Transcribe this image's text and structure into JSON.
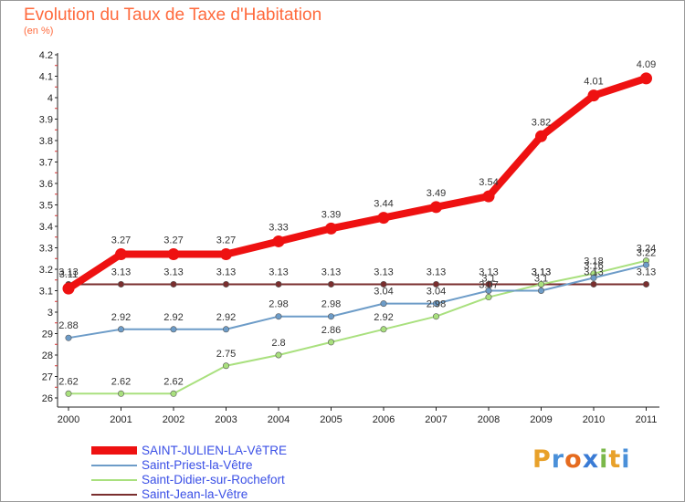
{
  "title": "Evolution du Taux de Taxe d'Habitation",
  "subtitle": "(en %)",
  "brand": {
    "text": "Proxiti",
    "letter_colors": [
      "#e8a12a",
      "#4a90d9",
      "#e56b1f",
      "#3a7bd5",
      "#7bb84a",
      "#e8a12a",
      "#4a90d9"
    ]
  },
  "chart_data": {
    "type": "line",
    "x": [
      "2000",
      "2001",
      "2002",
      "2003",
      "2004",
      "2005",
      "2006",
      "2007",
      "2008",
      "2009",
      "2010",
      "2011"
    ],
    "y_ticks": [
      "26",
      "27",
      "28",
      "29",
      "3",
      "3.1",
      "3.2",
      "3.3",
      "3.4",
      "3.5",
      "3.6",
      "3.7",
      "3.8",
      "3.9",
      "4",
      "4.1",
      "4.2"
    ],
    "grid": false,
    "legend_position": "bottom-left",
    "series": [
      {
        "name": "SAINT-JULIEN-LA-VêTRE",
        "color": "#ee1111",
        "values": [
          3.11,
          3.27,
          3.27,
          3.27,
          3.33,
          3.39,
          3.44,
          3.49,
          3.54,
          3.82,
          4.01,
          4.09
        ],
        "labels": [
          "3.11",
          "3.27",
          "3.27",
          "3.27",
          "3.33",
          "3.39",
          "3.44",
          "3.49",
          "3.54",
          "3.82",
          "4.01",
          "4.09"
        ]
      },
      {
        "name": "Saint-Priest-la-Vêtre",
        "color": "#6d9cc8",
        "values": [
          2.88,
          2.92,
          2.92,
          2.92,
          2.98,
          2.98,
          3.04,
          3.04,
          3.1,
          3.1,
          3.16,
          3.22
        ],
        "labels": [
          "2.88",
          "2.92",
          "2.92",
          "2.92",
          "2.98",
          "2.98",
          "3.04",
          "3.04",
          "3.1",
          "3.1",
          "3.16",
          "3.22"
        ]
      },
      {
        "name": "Saint-Didier-sur-Rochefort",
        "color": "#a9e07e",
        "values": [
          2.62,
          2.62,
          2.62,
          2.75,
          2.8,
          2.86,
          2.92,
          2.98,
          3.07,
          3.13,
          3.18,
          3.24
        ],
        "labels": [
          "2.62",
          "2.62",
          "2.62",
          "2.75",
          "2.8",
          "2.86",
          "2.92",
          "2.98",
          "3.07",
          "3.13",
          "3.18",
          "3.24"
        ]
      },
      {
        "name": "Saint-Jean-la-Vêtre",
        "color": "#7a2e2e",
        "values": [
          3.13,
          3.13,
          3.13,
          3.13,
          3.13,
          3.13,
          3.13,
          3.13,
          3.13,
          3.13,
          3.13,
          3.13
        ],
        "labels": [
          "3.13",
          "3.13",
          "3.13",
          "3.13",
          "3.13",
          "3.13",
          "3.13",
          "3.13",
          "3.13",
          "3.13",
          "3.13",
          "3.13"
        ]
      }
    ]
  }
}
